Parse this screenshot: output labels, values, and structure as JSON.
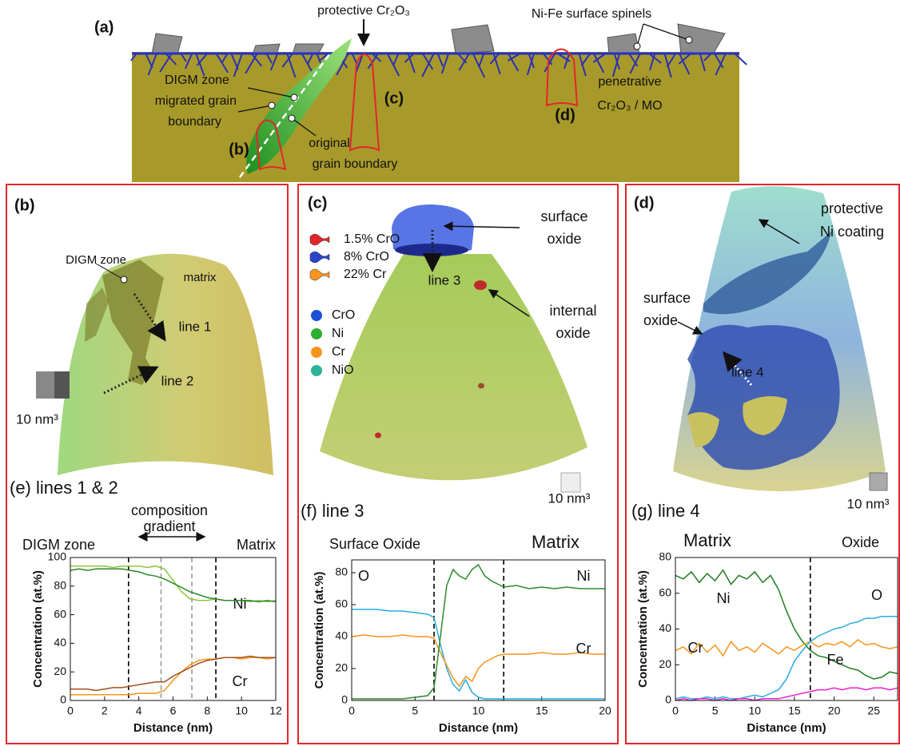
{
  "figure": {
    "a": {
      "label": "(a)",
      "protective": "protective Cr₂O₃",
      "spinels": "Ni-Fe surface spinels",
      "digm": "DIGM zone",
      "migrated": [
        "migrated grain",
        "boundary"
      ],
      "original": [
        "original",
        "grain boundary"
      ],
      "penetrative": [
        "penetrative",
        "Cr₂O₃ / MO"
      ],
      "marker_b": "(b)",
      "marker_c": "(c)",
      "marker_d": "(d)"
    },
    "b": {
      "label": "(b)",
      "digm": "DIGM zone",
      "matrix": "matrix",
      "line1": "line 1",
      "line2": "line 2",
      "scale": "10 nm³"
    },
    "c": {
      "label": "(c)",
      "surface_oxide": [
        "surface",
        "oxide"
      ],
      "line": "line 3",
      "internal_oxide": [
        "internal",
        "oxide"
      ],
      "scale": "10 nm³",
      "isosurfaces": [
        {
          "name": "1.5% CrO",
          "color": "#e3262b"
        },
        {
          "name": "8% CrO",
          "color": "#2a45c8"
        },
        {
          "name": "22% Cr",
          "color": "#f7941d"
        }
      ],
      "species": [
        {
          "name": "CrO",
          "color": "#1f4fd6"
        },
        {
          "name": "Ni",
          "color": "#2fae2f"
        },
        {
          "name": "Cr",
          "color": "#f7941d"
        },
        {
          "name": "NiO",
          "color": "#2bb39a"
        }
      ]
    },
    "d": {
      "label": "(d)",
      "coating": [
        "protective",
        "Ni coating"
      ],
      "surface_oxide": [
        "surface",
        "oxide"
      ],
      "line": "line 4",
      "scale": "10 nm³"
    }
  },
  "chart_data": [
    {
      "type": "line",
      "title": "(e) lines 1 & 2",
      "xlabel": "Distance (nm)",
      "ylabel": "Concentration (at.%)",
      "annotations": [
        "DIGM zone",
        "composition",
        "gradient",
        "Matrix"
      ],
      "x": [
        0,
        0.5,
        1,
        1.5,
        2,
        2.5,
        3,
        3.5,
        4,
        4.5,
        5,
        5.5,
        6,
        6.5,
        7,
        7.5,
        8,
        8.5,
        9,
        9.5,
        10,
        10.5,
        11,
        11.5,
        12
      ],
      "series": [
        {
          "name": "Ni",
          "color": "#8dc63f",
          "values": [
            94,
            94,
            94,
            94,
            94,
            93,
            94,
            94,
            94,
            93,
            94,
            92,
            84,
            76,
            71,
            70,
            70,
            71,
            70,
            70,
            70,
            69,
            70,
            69,
            70
          ]
        },
        {
          "color": "#2b8a2b",
          "values": [
            91,
            92,
            91,
            92,
            92,
            92,
            92,
            91,
            90,
            88,
            87,
            85,
            82,
            79,
            76,
            74,
            72,
            71,
            70,
            70,
            70,
            70,
            69,
            70,
            69
          ]
        },
        {
          "name": "Cr",
          "color": "#f7941d",
          "values": [
            4,
            4,
            4,
            4,
            4,
            4,
            4,
            4,
            5,
            5,
            5,
            7,
            14,
            20,
            25,
            28,
            29,
            29,
            30,
            30,
            29,
            30,
            30,
            29,
            30
          ]
        },
        {
          "color": "#a0521d",
          "values": [
            8,
            8,
            8,
            7,
            8,
            9,
            9,
            10,
            11,
            12,
            13,
            13,
            17,
            20,
            23,
            26,
            28,
            29,
            30,
            30,
            30,
            31,
            30,
            30,
            30
          ]
        }
      ],
      "vlines": [
        {
          "value": 3.4,
          "color": "#000000"
        },
        {
          "value": 5.3,
          "color": "#999999"
        },
        {
          "value": 7.1,
          "color": "#999999"
        },
        {
          "value": 8.5,
          "color": "#000000"
        }
      ],
      "xlim": [
        0,
        12
      ],
      "ylim": [
        0,
        100
      ],
      "xticks": [
        0,
        2,
        4,
        6,
        8,
        10,
        12
      ],
      "yticks": [
        0,
        20,
        40,
        60,
        80,
        100
      ]
    },
    {
      "type": "line",
      "title": "(f) line 3",
      "xlabel": "Distance (nm)",
      "ylabel": "Concentration (at.%)",
      "annotations": [
        "Surface Oxide",
        "Matrix"
      ],
      "x": [
        0,
        1,
        2,
        3,
        4,
        5,
        6,
        6.5,
        7,
        7.5,
        8,
        8.5,
        9,
        9.5,
        10,
        10.5,
        11,
        11.5,
        12,
        13,
        14,
        15,
        16,
        17,
        18,
        19,
        20
      ],
      "series": [
        {
          "name": "O",
          "color": "#29abe2",
          "values": [
            57,
            57,
            57,
            56,
            56,
            55,
            54,
            52,
            35,
            20,
            10,
            6,
            13,
            5,
            2,
            1,
            1,
            1,
            1,
            1,
            1,
            1,
            1,
            1,
            1,
            1,
            1
          ]
        },
        {
          "name": "Cr",
          "color": "#f7941d",
          "values": [
            40,
            41,
            40,
            40,
            41,
            40,
            40,
            39,
            30,
            22,
            14,
            9,
            15,
            12,
            20,
            24,
            26,
            28,
            29,
            29,
            29,
            30,
            29,
            29,
            30,
            29,
            29
          ]
        },
        {
          "name": "Ni",
          "color": "#2b8a2b",
          "values": [
            1,
            1,
            1,
            1,
            1,
            2,
            3,
            8,
            40,
            72,
            82,
            78,
            76,
            82,
            85,
            78,
            75,
            73,
            71,
            72,
            70,
            71,
            70,
            71,
            70,
            70,
            70
          ]
        }
      ],
      "vlines": [
        {
          "value": 6.5,
          "color": "#000000"
        },
        {
          "value": 12,
          "color": "#000000"
        }
      ],
      "xlim": [
        0,
        20
      ],
      "ylim": [
        0,
        88
      ],
      "xticks": [
        0,
        5,
        10,
        15,
        20
      ],
      "yticks": [
        0,
        20,
        40,
        60,
        80
      ]
    },
    {
      "type": "line",
      "title": "(g) line 4",
      "xlabel": "Distance (nm)",
      "ylabel": "Concentration (at.%)",
      "annotations": [
        "Matrix",
        "Oxide"
      ],
      "x": [
        0,
        1,
        2,
        3,
        4,
        5,
        6,
        7,
        8,
        9,
        10,
        11,
        12,
        13,
        14,
        15,
        16,
        17,
        18,
        19,
        20,
        21,
        22,
        23,
        24,
        25,
        26,
        27,
        28
      ],
      "series": [
        {
          "name": "Ni",
          "color": "#1e7d1e",
          "values": [
            70,
            68,
            72,
            66,
            71,
            67,
            73,
            65,
            70,
            68,
            72,
            66,
            70,
            62,
            50,
            40,
            33,
            28,
            25,
            24,
            22,
            20,
            18,
            17,
            14,
            12,
            13,
            16,
            15
          ]
        },
        {
          "name": "Cr",
          "color": "#f7941d",
          "values": [
            28,
            30,
            26,
            32,
            27,
            31,
            25,
            33,
            28,
            30,
            27,
            32,
            29,
            26,
            30,
            28,
            31,
            33,
            30,
            32,
            31,
            33,
            30,
            34,
            31,
            32,
            30,
            29,
            30
          ]
        },
        {
          "name": "O",
          "color": "#29abe2",
          "values": [
            1,
            2,
            1,
            1,
            2,
            1,
            2,
            1,
            1,
            2,
            3,
            2,
            4,
            6,
            12,
            22,
            28,
            33,
            36,
            38,
            40,
            41,
            43,
            44,
            46,
            46,
            47,
            47,
            47
          ]
        },
        {
          "name": "Fe",
          "color": "#ec1fd0",
          "values": [
            0,
            1,
            0,
            1,
            1,
            0,
            1,
            0,
            1,
            1,
            0,
            1,
            1,
            1,
            2,
            3,
            4,
            5,
            6,
            6,
            7,
            6,
            7,
            7,
            6,
            7,
            7,
            6,
            7
          ]
        }
      ],
      "vlines": [
        {
          "value": 17,
          "color": "#000000"
        }
      ],
      "xlim": [
        0,
        28
      ],
      "ylim": [
        0,
        80
      ],
      "xticks": [
        0,
        5,
        10,
        15,
        20,
        25
      ],
      "yticks": [
        0,
        20,
        40,
        60,
        80
      ]
    }
  ]
}
